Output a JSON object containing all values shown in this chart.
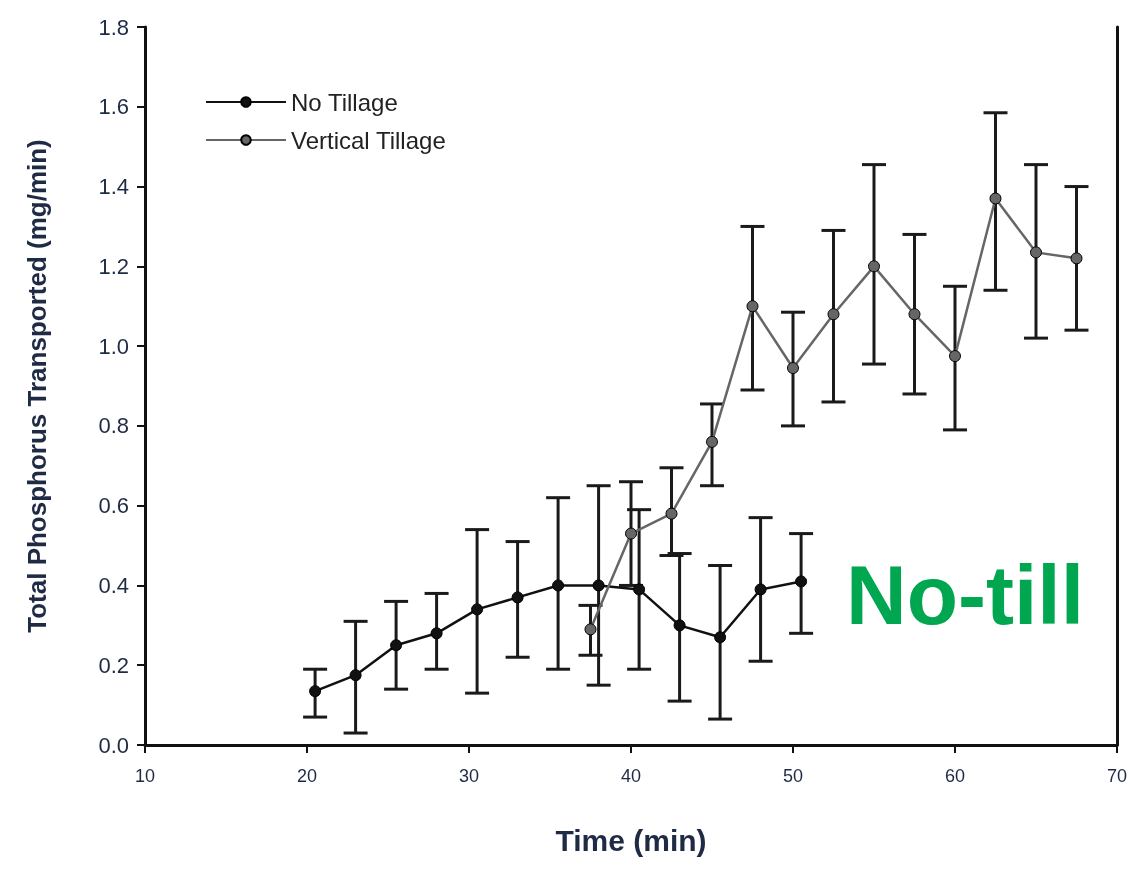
{
  "chart_data": {
    "type": "line",
    "xlabel": "Time (min)",
    "ylabel": "Total Phosphorus Transported (mg/min)",
    "xlim": [
      10,
      70
    ],
    "xticks": [
      10,
      20,
      30,
      40,
      50,
      60,
      70
    ],
    "ylim": [
      0,
      1.8
    ],
    "yticks": [
      {
        "value": 0,
        "label": "0.0"
      },
      {
        "value": 0.2,
        "label": "0.2"
      },
      {
        "value": 0.4,
        "label": "0.4"
      },
      {
        "value": 0.6,
        "label": "0.6"
      },
      {
        "value": 0.8,
        "label": "0.8"
      },
      {
        "value": 1.0,
        "label": "1.0"
      },
      {
        "value": 1.2,
        "label": "1.2"
      },
      {
        "value": 1.4,
        "label": "1.4"
      },
      {
        "value": 1.6,
        "label": "1.6"
      },
      {
        "value": 1.8,
        "label": "1.8"
      }
    ],
    "grid": false,
    "legend": "top left",
    "marker": "circle",
    "line_style": "solid",
    "series": [
      {
        "name": "No Tillage",
        "color": "#111111",
        "x": [
          20.5,
          23,
          25.5,
          28,
          30.5,
          33,
          35.5,
          38,
          40.5,
          43,
          45.5,
          48,
          50.5
        ],
        "values": [
          0.135,
          0.175,
          0.25,
          0.28,
          0.34,
          0.37,
          0.4,
          0.4,
          0.39,
          0.3,
          0.27,
          0.39,
          0.41
        ],
        "errors": [
          [
            0.07,
            0.19
          ],
          [
            0.03,
            0.31
          ],
          [
            0.14,
            0.36
          ],
          [
            0.19,
            0.38
          ],
          [
            0.13,
            0.54
          ],
          [
            0.22,
            0.51
          ],
          [
            0.19,
            0.62
          ],
          [
            0.15,
            0.65
          ],
          [
            0.19,
            0.59
          ],
          [
            0.11,
            0.48
          ],
          [
            0.065,
            0.45
          ],
          [
            0.21,
            0.57
          ],
          [
            0.28,
            0.53
          ]
        ]
      },
      {
        "name": "Vertical Tillage",
        "color": "#666666",
        "x": [
          37.5,
          40,
          42.5,
          45,
          47.5,
          50,
          52.5,
          55,
          57.5,
          60,
          62.5,
          65,
          67.5
        ],
        "values": [
          0.29,
          0.53,
          0.58,
          0.76,
          1.1,
          0.945,
          1.08,
          1.2,
          1.08,
          0.975,
          1.37,
          1.235,
          1.22
        ],
        "errors": [
          [
            0.225,
            0.35
          ],
          [
            0.4,
            0.66
          ],
          [
            0.475,
            0.695
          ],
          [
            0.65,
            0.855
          ],
          [
            0.89,
            1.3
          ],
          [
            0.8,
            1.085
          ],
          [
            0.86,
            1.29
          ],
          [
            0.955,
            1.455
          ],
          [
            0.88,
            1.28
          ],
          [
            0.79,
            1.15
          ],
          [
            1.14,
            1.585
          ],
          [
            1.02,
            1.455
          ],
          [
            1.04,
            1.4
          ]
        ]
      }
    ],
    "annotations": [
      "No-till"
    ]
  }
}
